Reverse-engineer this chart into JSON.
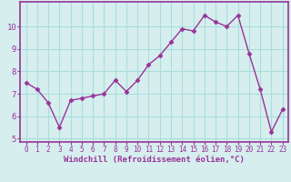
{
  "x": [
    0,
    1,
    2,
    3,
    4,
    5,
    6,
    7,
    8,
    9,
    10,
    11,
    12,
    13,
    14,
    15,
    16,
    17,
    18,
    19,
    20,
    21,
    22,
    23
  ],
  "y": [
    7.5,
    7.2,
    6.6,
    5.5,
    6.7,
    6.8,
    6.9,
    7.0,
    7.6,
    7.1,
    7.6,
    8.3,
    8.7,
    9.3,
    9.9,
    9.8,
    10.5,
    10.2,
    10.0,
    10.5,
    8.8,
    7.2,
    5.3,
    6.3
  ],
  "xlim": [
    -0.5,
    23.5
  ],
  "ylim": [
    4.85,
    11.1
  ],
  "yticks": [
    5,
    6,
    7,
    8,
    9,
    10
  ],
  "xticks": [
    0,
    1,
    2,
    3,
    4,
    5,
    6,
    7,
    8,
    9,
    10,
    11,
    12,
    13,
    14,
    15,
    16,
    17,
    18,
    19,
    20,
    21,
    22,
    23
  ],
  "line_color": "#993399",
  "marker": "D",
  "marker_size": 2.5,
  "bg_color": "#d6eeee",
  "grid_color": "#aadddd",
  "xlabel": "Windchill (Refroidissement éolien,°C)",
  "xlabel_color": "#993399",
  "tick_color": "#993399",
  "spine_color": "#993399",
  "font_family": "monospace"
}
